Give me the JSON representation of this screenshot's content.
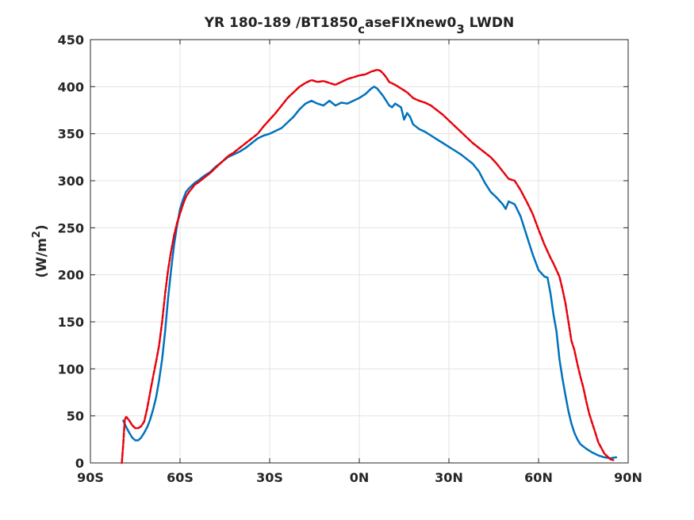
{
  "chart_data": {
    "type": "line",
    "title": "YR 180-189 /BT1850caseFIXnew03 LWDN",
    "title_parts": {
      "main1": "YR 180-189 /BT1850",
      "sub1": "c",
      "main2": "aseFIXnew0",
      "sub2": "3",
      "main3": " LWDN"
    },
    "xlabel": "",
    "ylabel": "(W/m2)",
    "ylabel_parts": {
      "pre": "(W/m",
      "sup": "2",
      "post": ")"
    },
    "xlim": [
      -90,
      90
    ],
    "ylim": [
      0,
      450
    ],
    "grid": true,
    "x_ticks": [
      -90,
      -60,
      -30,
      0,
      30,
      60,
      90
    ],
    "x_tick_labels": [
      "90S",
      "60S",
      "30S",
      "0N",
      "30N",
      "60N",
      "90N"
    ],
    "y_ticks": [
      0,
      50,
      100,
      150,
      200,
      250,
      300,
      350,
      400,
      450
    ],
    "y_tick_labels": [
      "0",
      "50",
      "100",
      "150",
      "200",
      "250",
      "300",
      "350",
      "400",
      "450"
    ],
    "series": [
      {
        "color": "#0072bd",
        "dash": "solid",
        "x": [
          -79,
          -78,
          -77,
          -76,
          -75,
          -74,
          -73,
          -72,
          -71,
          -70,
          -69,
          -68,
          -67,
          -66,
          -65,
          -64,
          -63,
          -62,
          -61,
          -60,
          -59,
          -58,
          -57,
          -56,
          -55,
          -54,
          -52,
          -50,
          -48,
          -46,
          -44,
          -42,
          -40,
          -38,
          -36,
          -34,
          -32,
          -30,
          -28,
          -26,
          -24,
          -22,
          -20,
          -18,
          -16,
          -14,
          -12,
          -10,
          -8,
          -6,
          -4,
          -2,
          0,
          2,
          4,
          5,
          6,
          7,
          8,
          9,
          10,
          11,
          12,
          14,
          15,
          16,
          17,
          18,
          20,
          22,
          24,
          26,
          28,
          30,
          32,
          34,
          36,
          38,
          40,
          42,
          44,
          46,
          48,
          49,
          50,
          52,
          54,
          56,
          58,
          60,
          62,
          63,
          64,
          65,
          66,
          67,
          68,
          69,
          70,
          71,
          72,
          73,
          74,
          76,
          78,
          80,
          82,
          84,
          86
        ],
        "y": [
          45,
          38,
          32,
          27,
          24,
          24,
          27,
          32,
          38,
          46,
          57,
          70,
          88,
          110,
          140,
          175,
          205,
          232,
          252,
          270,
          280,
          288,
          292,
          295,
          298,
          300,
          305,
          309,
          315,
          320,
          325,
          328,
          331,
          335,
          340,
          345,
          348,
          350,
          353,
          356,
          362,
          368,
          376,
          382,
          385,
          382,
          380,
          385,
          380,
          383,
          382,
          385,
          388,
          392,
          398,
          400,
          398,
          394,
          390,
          385,
          380,
          378,
          382,
          378,
          365,
          372,
          368,
          360,
          355,
          352,
          348,
          344,
          340,
          336,
          332,
          328,
          323,
          318,
          310,
          298,
          288,
          282,
          275,
          270,
          278,
          275,
          262,
          242,
          222,
          205,
          198,
          197,
          180,
          158,
          140,
          110,
          90,
          72,
          55,
          42,
          32,
          25,
          20,
          15,
          11,
          8,
          6,
          5,
          6
        ]
      },
      {
        "color": "#e8000b",
        "dash": "dashed",
        "x": [
          -79.5,
          -79,
          -78.5,
          -78,
          -77,
          -76,
          -75,
          -74,
          -73,
          -72,
          -71,
          -70,
          -69,
          -68,
          -67,
          -66,
          -65,
          -64,
          -63,
          -62,
          -61,
          -60,
          -59,
          -58,
          -57,
          -56,
          -55,
          -54,
          -52,
          -50,
          -48,
          -46,
          -44,
          -42,
          -40,
          -38,
          -36,
          -34,
          -32,
          -30,
          -28,
          -26,
          -24,
          -22,
          -20,
          -18,
          -16,
          -14,
          -12,
          -10,
          -8,
          -6,
          -4,
          -2,
          0,
          2,
          4,
          6,
          7,
          8,
          9,
          10,
          12,
          14,
          16,
          18,
          20,
          22,
          24,
          26,
          28,
          30,
          32,
          34,
          36,
          38,
          40,
          42,
          44,
          46,
          48,
          50,
          52,
          54,
          56,
          58,
          60,
          62,
          64,
          65,
          66,
          67,
          68,
          69,
          70,
          71,
          72,
          73,
          74,
          75,
          76,
          77,
          78,
          79,
          80,
          82,
          84,
          85
        ],
        "y": [
          0,
          20,
          46,
          49,
          45,
          40,
          37,
          37,
          39,
          44,
          58,
          75,
          92,
          108,
          125,
          150,
          180,
          205,
          225,
          242,
          255,
          265,
          275,
          283,
          288,
          292,
          296,
          298,
          303,
          308,
          314,
          320,
          326,
          330,
          335,
          340,
          345,
          350,
          358,
          365,
          372,
          380,
          388,
          394,
          400,
          404,
          407,
          405,
          406,
          404,
          402,
          405,
          408,
          410,
          412,
          413,
          416,
          418,
          417,
          414,
          410,
          405,
          402,
          398,
          394,
          388,
          385,
          383,
          380,
          375,
          370,
          364,
          358,
          352,
          346,
          340,
          335,
          330,
          325,
          318,
          310,
          302,
          300,
          290,
          278,
          265,
          248,
          232,
          218,
          212,
          205,
          198,
          185,
          170,
          150,
          130,
          120,
          105,
          92,
          80,
          65,
          52,
          42,
          32,
          22,
          10,
          4,
          3
        ]
      }
    ]
  }
}
